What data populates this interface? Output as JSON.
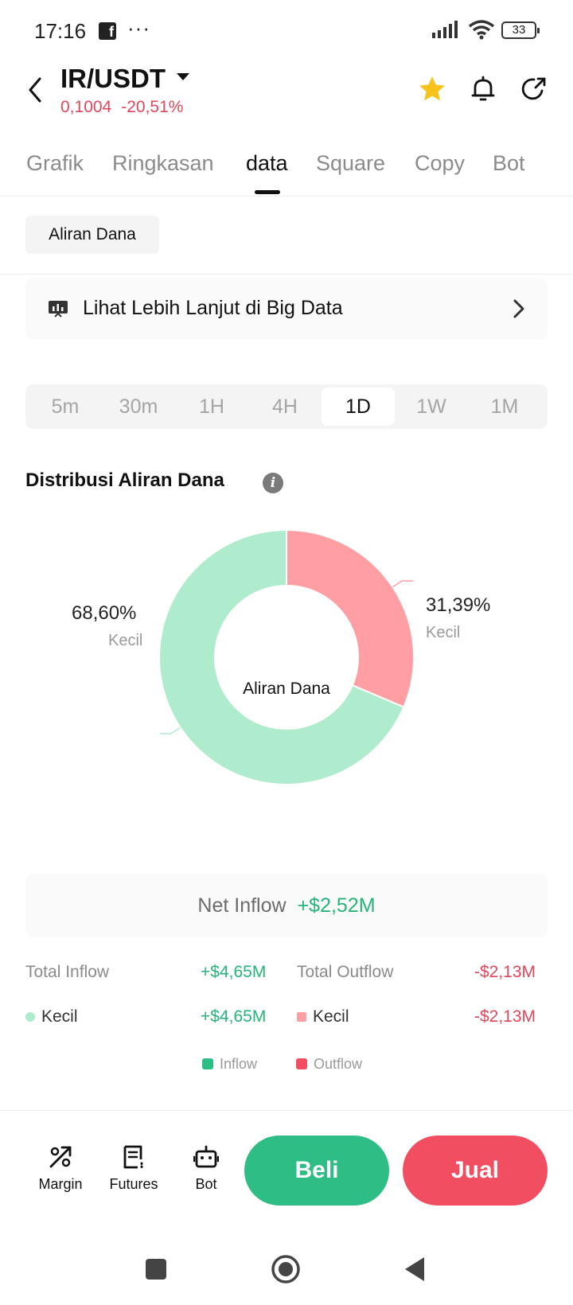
{
  "status_bar": {
    "time": "17:16",
    "dots": "···",
    "battery": "33"
  },
  "header": {
    "pair": "IR/USDT",
    "price": "0,1004",
    "change": "-20,51%"
  },
  "tabs": [
    {
      "label": "Grafik"
    },
    {
      "label": "Ringkasan"
    },
    {
      "label": "data"
    },
    {
      "label": "Square"
    },
    {
      "label": "Copy"
    },
    {
      "label": "Bot"
    }
  ],
  "active_tab": "data",
  "filter_chip": "Aliran Dana",
  "big_data_link": "Lihat Lebih Lanjut di Big Data",
  "timeframes": [
    {
      "label": "5m"
    },
    {
      "label": "30m"
    },
    {
      "label": "1H"
    },
    {
      "label": "4H"
    },
    {
      "label": "1D"
    },
    {
      "label": "1W"
    },
    {
      "label": "1M"
    }
  ],
  "active_timeframe": "1D",
  "section_title": "Distribusi Aliran Dana",
  "colors": {
    "inflow": "#aeeccd",
    "outflow": "#ff9fa4",
    "green_text": "#26b47b",
    "red_text": "#e0475c",
    "buy": "#2ebd85",
    "sell": "#f24e62"
  },
  "chart_data": {
    "type": "pie",
    "center_label": "Aliran Dana",
    "slices": [
      {
        "label": "Kecil",
        "value": 31.39,
        "display": "31,39%",
        "group": "Outflow"
      },
      {
        "label": "Kecil",
        "value": 68.6,
        "display": "68,60%",
        "group": "Inflow"
      }
    ]
  },
  "net_inflow": {
    "label": "Net Inflow",
    "value": "+$2,52M"
  },
  "totals": {
    "inflow_label": "Total Inflow",
    "inflow_value": "+$4,65M",
    "outflow_label": "Total Outflow",
    "outflow_value": "-$2,13M"
  },
  "breakdown": {
    "inflow_label": "Kecil",
    "inflow_value": "+$4,65M",
    "outflow_label": "Kecil",
    "outflow_value": "-$2,13M"
  },
  "legend": {
    "inflow": "Inflow",
    "outflow": "Outflow"
  },
  "bottom_bar": {
    "items": [
      {
        "label": "Margin"
      },
      {
        "label": "Futures"
      },
      {
        "label": "Bot"
      }
    ],
    "buy": "Beli",
    "sell": "Jual"
  }
}
